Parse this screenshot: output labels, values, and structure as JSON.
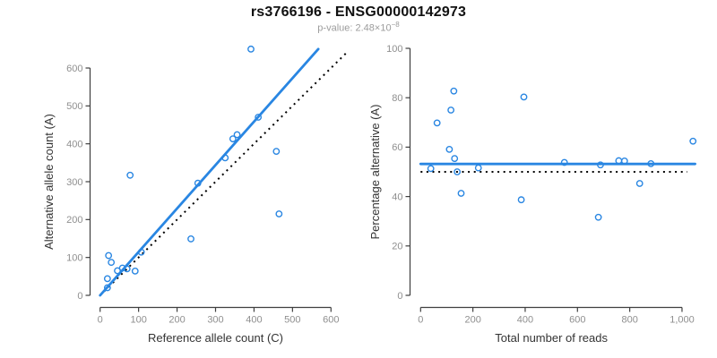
{
  "header": {
    "title": "rs3766196 - ENSG00000142973",
    "subtitle_prefix": "p-value: 2.48×10",
    "subtitle_exponent": "−8"
  },
  "colors": {
    "accent_blue": "#2986E2",
    "axis": "#3f3f3f",
    "tick_label": "#8f8f8f",
    "axis_title": "#333333",
    "identity_line": "#000000",
    "title": "#111111",
    "subtitle": "#9c9c9c",
    "background": "#ffffff"
  },
  "chart_data": [
    {
      "type": "scatter",
      "name": "left-panel",
      "xlabel": "Reference allele count (C)",
      "ylabel": "Alternative allele count (A)",
      "xlim": [
        0,
        620
      ],
      "ylim": [
        0,
        655
      ],
      "grid": "off",
      "legend": "none",
      "xticks": {
        "values": [
          0,
          100,
          200,
          300,
          400,
          500,
          600
        ],
        "labels": [
          "0",
          "100",
          "200",
          "300",
          "400",
          "500",
          "600"
        ]
      },
      "yticks": {
        "values": [
          0,
          100,
          200,
          300,
          400,
          500,
          600
        ],
        "labels": [
          "0",
          "100",
          "200",
          "300",
          "400",
          "500",
          "600"
        ]
      },
      "points": [
        [
          22,
          105
        ],
        [
          29,
          87
        ],
        [
          19,
          44
        ],
        [
          19,
          20
        ],
        [
          45,
          65
        ],
        [
          58,
          72
        ],
        [
          70,
          70
        ],
        [
          91,
          64
        ],
        [
          107,
          114
        ],
        [
          78,
          317
        ],
        [
          236,
          149
        ],
        [
          254,
          296
        ],
        [
          325,
          363
        ],
        [
          345,
          413
        ],
        [
          356,
          424
        ],
        [
          392,
          650
        ],
        [
          411,
          470
        ],
        [
          458,
          380
        ],
        [
          465,
          215
        ]
      ],
      "fit_line": {
        "x1": 0,
        "y1": 0,
        "x2": 567,
        "y2": 650
      },
      "reference_line": {
        "x1": 0,
        "y1": 0,
        "x2": 645,
        "y2": 645
      }
    },
    {
      "type": "scatter",
      "name": "right-panel",
      "xlabel": "Total number of reads",
      "ylabel": "Percentage alternative (A)",
      "xlim": [
        0,
        1060
      ],
      "ylim": [
        0,
        100
      ],
      "grid": "off",
      "legend": "none",
      "xticks": {
        "values": [
          0,
          200,
          400,
          600,
          800,
          1000
        ],
        "labels": [
          "0",
          "200",
          "400",
          "600",
          "800",
          "1,000"
        ]
      },
      "yticks": {
        "values": [
          0,
          20,
          40,
          60,
          80,
          100
        ],
        "labels": [
          "0",
          "20",
          "40",
          "60",
          "80",
          "100"
        ]
      },
      "points": [
        [
          127,
          82.7
        ],
        [
          116,
          75.0
        ],
        [
          63,
          69.8
        ],
        [
          39,
          51.3
        ],
        [
          110,
          59.1
        ],
        [
          130,
          55.4
        ],
        [
          140,
          50.0
        ],
        [
          155,
          41.3
        ],
        [
          221,
          51.6
        ],
        [
          395,
          80.3
        ],
        [
          385,
          38.7
        ],
        [
          550,
          53.8
        ],
        [
          688,
          52.8
        ],
        [
          758,
          54.5
        ],
        [
          780,
          54.4
        ],
        [
          1042,
          62.4
        ],
        [
          881,
          53.3
        ],
        [
          838,
          45.3
        ],
        [
          680,
          31.6
        ]
      ],
      "fit_line": {
        "x1": 0,
        "y1": 53.2,
        "x2": 1050,
        "y2": 53.2
      },
      "reference_line": {
        "x1": 0,
        "y1": 50,
        "x2": 1020,
        "y2": 50
      }
    }
  ]
}
